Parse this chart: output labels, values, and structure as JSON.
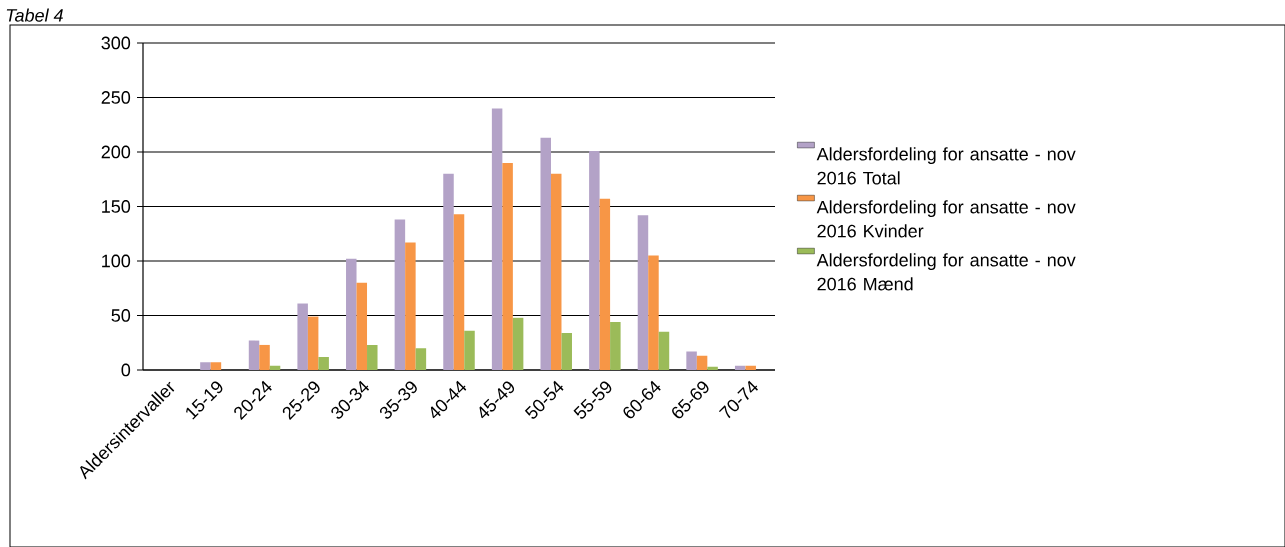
{
  "chart_data": {
    "type": "bar",
    "title": "Tabel 4",
    "categories": [
      "Aldersintervaller",
      "15-19",
      "20-24",
      "25-29",
      "30-34",
      "35-39",
      "40-44",
      "45-49",
      "50-54",
      "55-59",
      "60-64",
      "65-69",
      "70-74"
    ],
    "series": [
      {
        "name": "Aldersfordeling for ansatte - nov 2016 Total",
        "color": "#b3a2c7",
        "values": [
          0,
          7,
          27,
          61,
          102,
          138,
          180,
          240,
          213,
          201,
          142,
          17,
          4
        ]
      },
      {
        "name": "Aldersfordeling for ansatte - nov 2016 Kvinder",
        "color": "#f79646",
        "values": [
          0,
          7,
          23,
          49,
          80,
          117,
          143,
          190,
          180,
          157,
          105,
          13,
          4
        ]
      },
      {
        "name": "Aldersfordeling for ansatte - nov 2016 Mænd",
        "color": "#9bbb59",
        "values": [
          0,
          0,
          4,
          12,
          23,
          20,
          36,
          48,
          34,
          44,
          35,
          3,
          0
        ]
      }
    ],
    "ylim": [
      0,
      300
    ],
    "yticks": [
      0,
      50,
      100,
      150,
      200,
      250,
      300
    ],
    "grid": "y",
    "legend": "right"
  }
}
